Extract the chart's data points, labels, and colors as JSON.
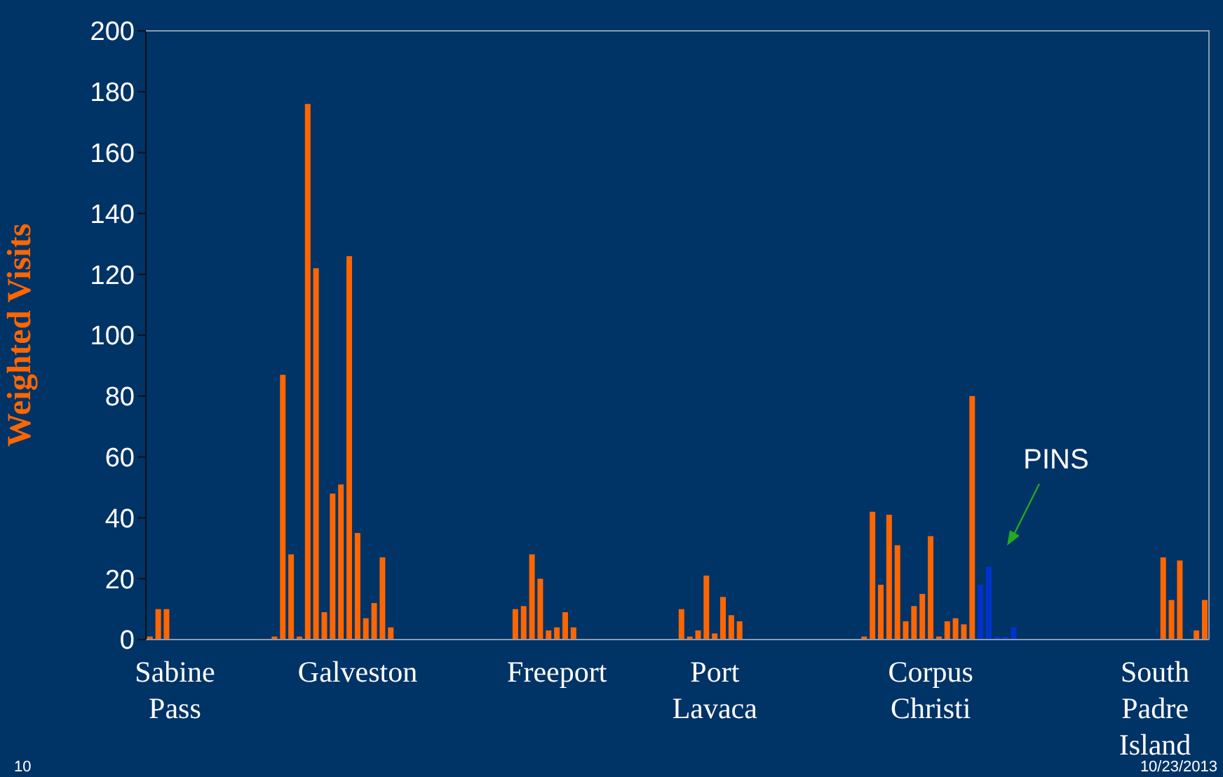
{
  "chart_data": {
    "type": "bar",
    "ylabel": "Weighted Visits",
    "ylim": [
      0,
      200
    ],
    "yticks": [
      0,
      20,
      40,
      60,
      80,
      100,
      120,
      140,
      160,
      180,
      200
    ],
    "grid": false,
    "categories": [
      null,
      null,
      null,
      "Sabine Pass",
      null,
      null,
      null,
      null,
      null,
      null,
      null,
      null,
      null,
      null,
      null,
      null,
      null,
      null,
      null,
      null,
      null,
      null,
      null,
      null,
      null,
      "Galveston",
      null,
      null,
      null,
      null,
      null,
      null,
      null,
      null,
      null,
      null,
      null,
      null,
      null,
      null,
      null,
      null,
      null,
      null,
      null,
      null,
      null,
      null,
      null,
      "Freeport",
      null,
      null,
      null,
      null,
      null,
      null,
      null,
      null,
      null,
      null,
      null,
      null,
      null,
      null,
      null,
      null,
      null,
      null,
      "Port Lavaca",
      null,
      null,
      null,
      null,
      null,
      null,
      null,
      null,
      null,
      null,
      null,
      null,
      null,
      null,
      null,
      null,
      null,
      null,
      null,
      null,
      null,
      null,
      null,
      null,
      null,
      "Corpus Christi",
      null,
      null,
      null,
      null,
      null,
      null,
      null,
      null,
      null,
      null,
      null,
      null,
      null,
      null,
      null,
      null,
      null,
      null,
      null,
      null,
      null,
      null,
      null,
      null,
      null,
      null,
      "South Padre Island",
      null,
      null,
      null,
      null,
      null,
      null
    ],
    "values": [
      1,
      10,
      10,
      null,
      null,
      null,
      null,
      null,
      null,
      null,
      null,
      null,
      null,
      null,
      null,
      1,
      87,
      28,
      1,
      176,
      122,
      9,
      48,
      51,
      126,
      35,
      7,
      12,
      27,
      4,
      null,
      null,
      null,
      null,
      null,
      null,
      null,
      null,
      null,
      null,
      null,
      null,
      null,
      null,
      10,
      11,
      28,
      20,
      3,
      4,
      9,
      4,
      null,
      null,
      null,
      null,
      null,
      null,
      null,
      null,
      null,
      null,
      null,
      null,
      10,
      1,
      3,
      21,
      2,
      14,
      8,
      6,
      null,
      null,
      null,
      null,
      null,
      null,
      null,
      null,
      null,
      null,
      null,
      null,
      null,
      null,
      1,
      42,
      18,
      41,
      31,
      6,
      11,
      15,
      34,
      1,
      6,
      7,
      5,
      80,
      18,
      24,
      1,
      1,
      4,
      null,
      null,
      null,
      null,
      null,
      null,
      null,
      null,
      null,
      null,
      null,
      null,
      null,
      null,
      null,
      null,
      null,
      27,
      13,
      26,
      null,
      3,
      13
    ],
    "colors": [
      "#ff6600",
      "#ff6600",
      "#ff6600",
      null,
      null,
      null,
      null,
      null,
      null,
      null,
      null,
      null,
      null,
      null,
      null,
      "#ff6600",
      "#ff6600",
      "#ff6600",
      "#ff6600",
      "#ff6600",
      "#ff6600",
      "#ff6600",
      "#ff6600",
      "#ff6600",
      "#ff6600",
      "#ff6600",
      "#ff6600",
      "#ff6600",
      "#ff6600",
      "#ff6600",
      null,
      null,
      null,
      null,
      null,
      null,
      null,
      null,
      null,
      null,
      null,
      null,
      null,
      null,
      "#ff6600",
      "#ff6600",
      "#ff6600",
      "#ff6600",
      "#ff6600",
      "#ff6600",
      "#ff6600",
      "#ff6600",
      null,
      null,
      null,
      null,
      null,
      null,
      null,
      null,
      null,
      null,
      null,
      null,
      "#ff6600",
      "#ff6600",
      "#ff6600",
      "#ff6600",
      "#ff6600",
      "#ff6600",
      "#ff6600",
      "#ff6600",
      null,
      null,
      null,
      null,
      null,
      null,
      null,
      null,
      null,
      null,
      null,
      null,
      null,
      null,
      "#ff6600",
      "#ff6600",
      "#ff6600",
      "#ff6600",
      "#ff6600",
      "#ff6600",
      "#ff6600",
      "#ff6600",
      "#ff6600",
      "#ff6600",
      "#ff6600",
      "#ff6600",
      "#ff6600",
      "#ff6600",
      "#0033cc",
      "#0033cc",
      "#0033cc",
      "#0033cc",
      "#0033cc",
      null,
      null,
      null,
      null,
      null,
      null,
      null,
      null,
      null,
      null,
      null,
      null,
      null,
      null,
      null,
      null,
      null,
      "#ff6600",
      "#ff6600",
      "#ff6600",
      null,
      "#ff6600",
      "#ff6600"
    ],
    "annotations": [
      "PINS",
      "10",
      "10/23/2013"
    ]
  }
}
